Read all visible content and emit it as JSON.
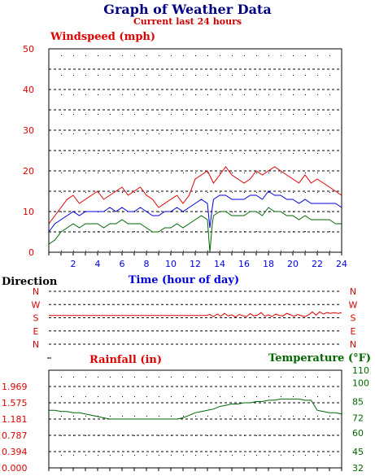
{
  "page": {
    "title": "Graph of Weather Data",
    "subtitle": "Current last 24 hours"
  },
  "colors": {
    "title": "#000080",
    "red": "#dd0000",
    "blue": "#0000dd",
    "green": "#006600",
    "grid": "#000000",
    "axis_text": "#000000"
  },
  "chart_data": [
    {
      "id": "wind",
      "type": "line",
      "title": "",
      "ylabel": "Windspeed (mph)",
      "xlabel": "Time (hour of day)",
      "xlim": [
        0,
        24
      ],
      "ylim": [
        0,
        50
      ],
      "x_ticks": [
        2,
        4,
        6,
        8,
        10,
        12,
        14,
        16,
        18,
        20,
        22,
        24
      ],
      "y_ticks": [
        0,
        10,
        20,
        30,
        40,
        50
      ],
      "grid": true,
      "series": [
        {
          "color": "#dd0000",
          "x": [
            0,
            0.5,
            1,
            1.5,
            2,
            2.5,
            3,
            3.5,
            4,
            4.5,
            5,
            5.5,
            6,
            6.5,
            7,
            7.5,
            8,
            8.5,
            9,
            9.5,
            10,
            10.5,
            11,
            11.5,
            12,
            12.5,
            13,
            13.5,
            14,
            14.5,
            15,
            15.5,
            16,
            16.5,
            17,
            17.5,
            18,
            18.5,
            19,
            19.5,
            20,
            20.5,
            21,
            21.5,
            22,
            22.5,
            23,
            23.5,
            24
          ],
          "values": [
            7,
            9,
            11,
            13,
            14,
            12,
            13,
            14,
            15,
            13,
            14,
            15,
            16,
            14,
            15,
            16,
            14,
            13,
            11,
            12,
            13,
            14,
            12,
            14,
            18,
            19,
            20,
            17,
            19,
            21,
            19,
            18,
            17,
            18,
            20,
            19,
            20,
            21,
            20,
            19,
            18,
            17,
            19,
            17,
            18,
            17,
            16,
            15,
            14
          ]
        },
        {
          "color": "#0000dd",
          "x": [
            0,
            0.5,
            1,
            1.5,
            2,
            2.5,
            3,
            3.5,
            4,
            4.5,
            5,
            5.5,
            6,
            6.5,
            7,
            7.5,
            8,
            8.5,
            9,
            9.5,
            10,
            10.5,
            11,
            11.5,
            12,
            12.5,
            13,
            13.2,
            13.4,
            13.5,
            14,
            14.5,
            15,
            15.5,
            16,
            16.5,
            17,
            17.5,
            18,
            18.5,
            19,
            19.5,
            20,
            20.5,
            21,
            21.5,
            22,
            22.5,
            23,
            23.5,
            24
          ],
          "values": [
            5,
            7,
            8,
            9,
            10,
            9,
            10,
            10,
            10,
            10,
            11,
            10,
            11,
            10,
            10,
            11,
            10,
            9,
            9,
            10,
            10,
            11,
            10,
            11,
            12,
            13,
            12,
            6,
            11,
            13,
            14,
            14,
            13,
            13,
            13,
            14,
            14,
            13,
            15,
            14,
            14,
            13,
            13,
            12,
            13,
            12,
            12,
            12,
            12,
            12,
            11
          ]
        },
        {
          "color": "#006600",
          "x": [
            0,
            0.5,
            1,
            1.5,
            2,
            2.5,
            3,
            3.5,
            4,
            4.5,
            5,
            5.5,
            6,
            6.5,
            7,
            7.5,
            8,
            8.5,
            9,
            9.5,
            10,
            10.5,
            11,
            11.5,
            12,
            12.5,
            13,
            13.2,
            13.4,
            13.5,
            14,
            14.5,
            15,
            15.5,
            16,
            16.5,
            17,
            17.5,
            18,
            18.5,
            19,
            19.5,
            20,
            20.5,
            21,
            21.5,
            22,
            22.5,
            23,
            23.5,
            24
          ],
          "values": [
            2,
            3,
            5,
            6,
            7,
            6,
            7,
            7,
            7,
            6,
            7,
            7,
            8,
            7,
            7,
            7,
            6,
            5,
            5,
            6,
            6,
            7,
            6,
            7,
            8,
            9,
            8,
            0,
            7,
            9,
            10,
            10,
            9,
            9,
            9,
            10,
            10,
            9,
            11,
            10,
            10,
            9,
            9,
            8,
            9,
            8,
            8,
            8,
            8,
            7,
            7
          ]
        }
      ]
    },
    {
      "id": "direction",
      "type": "line",
      "ylabel": "Direction",
      "xlim": [
        0,
        24
      ],
      "y_categories": [
        "N",
        "W",
        "S",
        "E",
        "N"
      ],
      "y_ticks": [
        0,
        90,
        180,
        270,
        360
      ],
      "ylim": [
        0,
        360
      ],
      "grid": true,
      "series": [
        {
          "color": "#dd0000",
          "x": [
            0,
            12.9,
            13.2,
            13.5,
            13.8,
            14.1,
            14.4,
            14.7,
            15,
            15.3,
            15.6,
            15.9,
            16.2,
            16.5,
            16.8,
            17.1,
            17.4,
            17.7,
            18,
            18.3,
            18.6,
            18.9,
            19.2,
            19.5,
            19.8,
            20.1,
            20.4,
            20.7,
            21,
            21.3,
            21.6,
            21.9,
            22.2,
            22.5,
            22.8,
            23.1,
            23.4,
            23.7,
            24
          ],
          "values": [
            165,
            165,
            158,
            172,
            155,
            170,
            150,
            168,
            160,
            175,
            158,
            166,
            172,
            152,
            168,
            162,
            145,
            170,
            160,
            172,
            155,
            165,
            168,
            150,
            160,
            170,
            158,
            166,
            172,
            160,
            140,
            162,
            140,
            155,
            145,
            150,
            145,
            150,
            145
          ]
        }
      ]
    },
    {
      "id": "rain-temp",
      "type": "line",
      "ylabel": "Rainfall (in)",
      "y2label": "Temperature (°F)",
      "xlim": [
        0,
        24
      ],
      "ylim": [
        0,
        2.362
      ],
      "y_ticks": [
        "0.000",
        "0.394",
        "0.787",
        "1.181",
        "1.575",
        "1.969"
      ],
      "y2lim": [
        32,
        110
      ],
      "y2_ticks": [
        32,
        45,
        60,
        72,
        85,
        100,
        110
      ],
      "grid": true,
      "series": [
        {
          "color": "#006600",
          "axis": "y2",
          "x": [
            0,
            0.5,
            1,
            1.5,
            2,
            2.5,
            3,
            3.5,
            4,
            4.5,
            5,
            5.5,
            6,
            7,
            8,
            9,
            10,
            10.5,
            11,
            11.5,
            12,
            12.5,
            13,
            13.5,
            14,
            14.5,
            15,
            15.5,
            16,
            16.5,
            17,
            17.5,
            18,
            18.5,
            19,
            19.5,
            20,
            20.5,
            21,
            21.5,
            22,
            22.5,
            23,
            23.5,
            24
          ],
          "values": [
            78,
            78,
            77,
            77,
            76,
            76,
            75,
            74,
            73,
            72,
            71,
            71,
            71,
            71,
            71,
            71,
            71,
            71,
            72,
            74,
            76,
            77,
            78,
            79,
            81,
            82,
            83,
            83,
            84,
            84,
            85,
            85,
            86,
            86,
            87,
            87,
            87,
            87,
            86,
            86,
            78,
            77,
            76,
            76,
            75
          ]
        }
      ]
    }
  ]
}
